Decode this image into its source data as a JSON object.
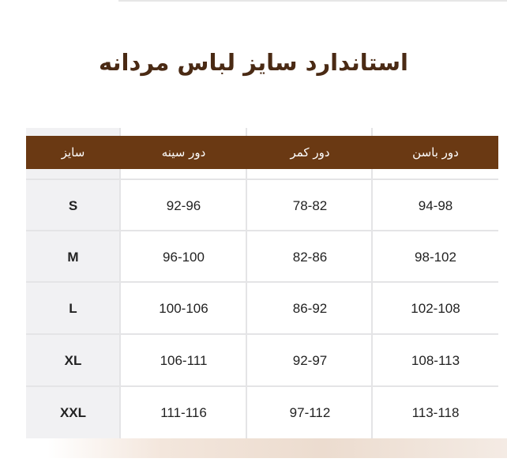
{
  "title": "استاندارد سایز لباس مردانه",
  "table": {
    "headers": [
      "سایز",
      "دور سینه",
      "دور کمر",
      "دور باسن"
    ],
    "rows": [
      [
        "S",
        "92-96",
        "78-82",
        "94-98"
      ],
      [
        "M",
        "96-100",
        "82-86",
        "98-102"
      ],
      [
        "L",
        "100-106",
        "86-92",
        "102-108"
      ],
      [
        "XL",
        "106-111",
        "92-97",
        "108-113"
      ],
      [
        "XXL",
        "111-116",
        "97-112",
        "113-118"
      ]
    ]
  },
  "colors": {
    "header": "#6a3913",
    "title": "#4a2a14",
    "size_column": "#f1f1f3"
  }
}
